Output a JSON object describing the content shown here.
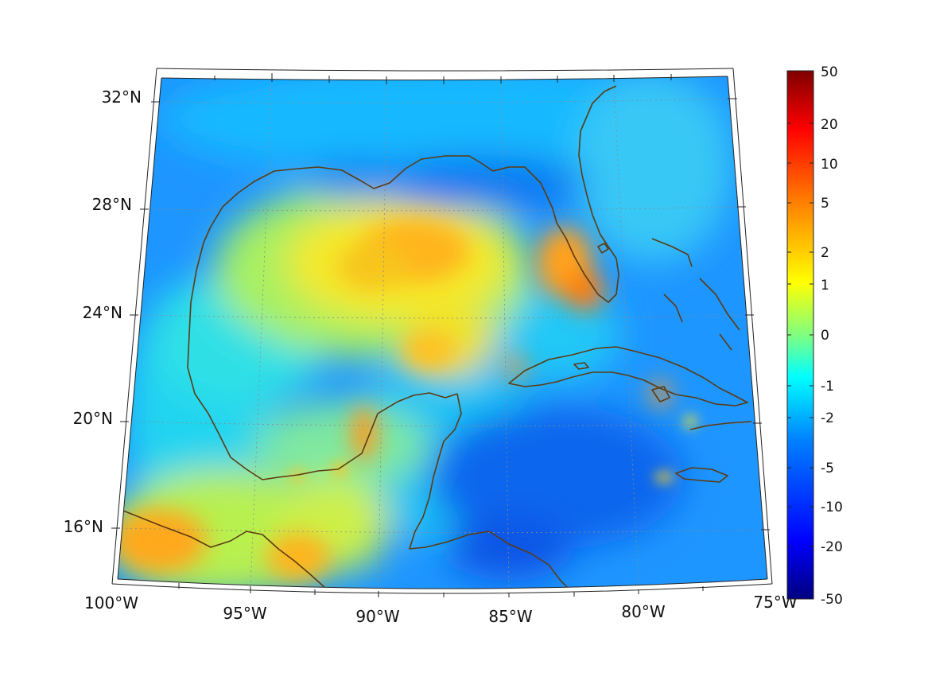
{
  "map": {
    "lon_labels": [
      "100°W",
      "95°W",
      "90°W",
      "85°W",
      "80°W",
      "75°W"
    ],
    "lat_labels": [
      "32°N",
      "28°N",
      "24°N",
      "20°N",
      "16°N"
    ],
    "colorbar": {
      "tick_labels": [
        "50",
        "20",
        "10",
        "5",
        "2",
        "1",
        "0",
        "-1",
        "-2",
        "-5",
        "-10",
        "-20",
        "-50"
      ],
      "colormap": "jet",
      "colors": [
        "#00007f",
        "#0000ff",
        "#0080ff",
        "#00ffff",
        "#80ff80",
        "#ffff00",
        "#ff8000",
        "#ff0000",
        "#7f0000"
      ]
    },
    "coastline_color": "#5c3b12",
    "background_field_color": "#1e90ff"
  }
}
